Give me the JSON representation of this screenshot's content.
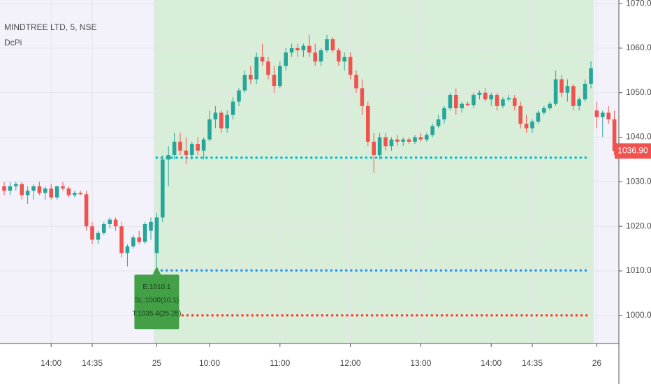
{
  "chart_data": {
    "type": "candlestick",
    "title": "MINDTREE LTD, 5, NSE",
    "subtitle": "DcPi",
    "categories": [
      null,
      null,
      null,
      null,
      null,
      null,
      null,
      null,
      "14:00",
      null,
      null,
      null,
      null,
      null,
      null,
      "14:35",
      null,
      null,
      null,
      null,
      null,
      null,
      null,
      null,
      null,
      null,
      "25",
      null,
      null,
      null,
      null,
      null,
      null,
      null,
      null,
      "10:00",
      null,
      null,
      null,
      null,
      null,
      null,
      null,
      null,
      null,
      null,
      null,
      "11:00",
      null,
      null,
      null,
      null,
      null,
      null,
      null,
      null,
      null,
      null,
      null,
      "12:00",
      null,
      null,
      null,
      null,
      null,
      null,
      null,
      null,
      null,
      null,
      null,
      "13:00",
      null,
      null,
      null,
      null,
      null,
      null,
      null,
      null,
      null,
      null,
      null,
      "14:00",
      null,
      null,
      null,
      null,
      null,
      null,
      "14:35",
      null,
      null,
      null,
      null,
      null,
      null,
      null,
      null,
      null,
      null,
      "26",
      null,
      null,
      null
    ],
    "series": {
      "up_color": "#26a69a",
      "down_color": "#ef5350",
      "open": [
        1029,
        1028,
        1029,
        1029.5,
        1027,
        1028,
        1029,
        1027.5,
        1028.5,
        1026.5,
        1029,
        1028.5,
        1027,
        1027.5,
        1027.2,
        1020,
        1017,
        1018.5,
        1020.5,
        1021.5,
        1020,
        1014,
        1015.5,
        1017.5,
        1016.5,
        1019,
        1014,
        1022,
        1035,
        1036,
        1039,
        1037,
        1036,
        1038.5,
        1037,
        1039.5,
        1044,
        1045.5,
        1042,
        1045,
        1048,
        1050.5,
        1054,
        1053,
        1058,
        1057,
        1054,
        1051.5,
        1056,
        1059,
        1060,
        1059.5,
        1060.5,
        1059,
        1057,
        1059.5,
        1062,
        1059.5,
        1057,
        1058,
        1054,
        1051,
        1047,
        1039,
        1036,
        1040,
        1038,
        1039.5,
        1039,
        1039.5,
        1039,
        1040,
        1039.5,
        1040.5,
        1042.5,
        1044,
        1046.5,
        1049.5,
        1046.5,
        1047.5,
        1047.2,
        1049.5,
        1050,
        1048.5,
        1049.5,
        1047,
        1048.5,
        1048.8,
        1047,
        1043,
        1042,
        1043.5,
        1045.5,
        1046.5,
        1047.5,
        1053,
        1050,
        1051.5,
        1047,
        1048.5,
        1052,
        1046,
        1044.5,
        1045.5,
        1044
      ],
      "high": [
        1030,
        1030,
        1030,
        1030,
        1029,
        1029.5,
        1030,
        1029,
        1029.5,
        1029,
        1030,
        1029,
        1028,
        1028,
        1028,
        1021,
        1019,
        1021,
        1022,
        1022,
        1021,
        1016,
        1018,
        1019,
        1021,
        1022,
        1023,
        1036,
        1038,
        1041,
        1041,
        1040,
        1039,
        1040,
        1040,
        1046,
        1047,
        1046,
        1046,
        1049,
        1051,
        1055,
        1056,
        1059,
        1061,
        1058,
        1056,
        1057,
        1060,
        1061,
        1061,
        1061,
        1063,
        1061,
        1060,
        1063,
        1062.5,
        1060,
        1059,
        1059,
        1055,
        1053,
        1048,
        1041,
        1041,
        1041,
        1040,
        1040.5,
        1040,
        1040,
        1040.5,
        1041,
        1041,
        1043,
        1045,
        1047,
        1050,
        1051,
        1048,
        1048,
        1050,
        1050.5,
        1051,
        1050,
        1050,
        1049,
        1049.5,
        1049.5,
        1048,
        1045,
        1044,
        1046,
        1047,
        1048,
        1055,
        1054,
        1053,
        1052,
        1049,
        1053,
        1057,
        1048,
        1046,
        1047,
        1046
      ],
      "low": [
        1027,
        1027,
        1028,
        1026,
        1025,
        1026,
        1027,
        1026,
        1026,
        1026,
        1028,
        1026.5,
        1026.5,
        1027,
        1019,
        1016,
        1016,
        1018,
        1019.5,
        1019,
        1013,
        1011,
        1015,
        1016,
        1016,
        1017,
        1011,
        1021,
        1029,
        1035,
        1036,
        1034,
        1035,
        1036,
        1035,
        1039,
        1042,
        1041,
        1041,
        1044,
        1047,
        1050,
        1052,
        1052,
        1056,
        1053,
        1050,
        1051,
        1055,
        1058,
        1058,
        1058,
        1058,
        1056,
        1056,
        1059,
        1059,
        1056,
        1055,
        1053,
        1050,
        1045,
        1038,
        1032,
        1035,
        1037,
        1037,
        1038,
        1038,
        1038.5,
        1038.5,
        1039,
        1039,
        1040,
        1042,
        1043,
        1046,
        1045,
        1045.5,
        1047,
        1046.5,
        1048.5,
        1048,
        1047,
        1046,
        1046.5,
        1048,
        1046,
        1042,
        1041,
        1041,
        1043,
        1045,
        1046,
        1047,
        1049,
        1048,
        1046,
        1046,
        1048,
        1051,
        1042,
        1040,
        1043,
        1036
      ],
      "close": [
        1028,
        1029,
        1029.5,
        1027,
        1028,
        1029,
        1027.5,
        1028.5,
        1026.5,
        1029,
        1028.5,
        1027,
        1027.5,
        1027.2,
        1020,
        1017,
        1018.5,
        1020.5,
        1021.5,
        1020,
        1014,
        1015.5,
        1017.5,
        1016.5,
        1020.5,
        1021,
        1022,
        1035,
        1036,
        1039,
        1037,
        1036,
        1038.5,
        1037,
        1039.5,
        1044,
        1045.5,
        1042,
        1045,
        1048,
        1050.5,
        1054,
        1053,
        1058,
        1057,
        1054,
        1051.5,
        1056,
        1059,
        1060,
        1059.5,
        1060.5,
        1059,
        1057,
        1059.5,
        1062,
        1059.5,
        1057,
        1058,
        1054,
        1051,
        1047,
        1039,
        1036,
        1040,
        1038,
        1039.5,
        1039,
        1039.5,
        1039,
        1040,
        1039.5,
        1040.5,
        1042.5,
        1044,
        1046.5,
        1049.5,
        1046.5,
        1047.5,
        1047.2,
        1049.5,
        1050,
        1048.5,
        1049.5,
        1047,
        1048.5,
        1048.8,
        1047,
        1043,
        1042,
        1043.5,
        1045.5,
        1046.5,
        1047.5,
        1053,
        1050,
        1051.5,
        1047,
        1048.5,
        1052,
        1055.5,
        1044.5,
        1045.5,
        1044,
        1036.9
      ],
      "last_value_label": "1036.90"
    },
    "levels": [
      {
        "value": 1035.4,
        "color": "#00bcd4"
      },
      {
        "value": 1010.1,
        "color": "#2196f3"
      },
      {
        "value": 1000,
        "color": "#f44336"
      }
    ],
    "annotation": [
      "E:1010.1",
      "SL:1000(10.1)",
      "T:1035.4(25.25)"
    ],
    "ylim": [
      993.7,
      1070.8
    ],
    "yticks": [
      {
        "value": 1000,
        "label": "1000.00"
      },
      {
        "value": 1010,
        "label": "1010.00"
      },
      {
        "value": 1020,
        "label": "1020.00"
      },
      {
        "value": 1030,
        "label": "1030.00"
      },
      {
        "value": 1040,
        "label": "1040.00"
      },
      {
        "value": 1050,
        "label": "1050.00"
      },
      {
        "value": 1060,
        "label": "1060.00"
      },
      {
        "value": 1070,
        "label": "1070.00"
      }
    ],
    "grid": true
  }
}
